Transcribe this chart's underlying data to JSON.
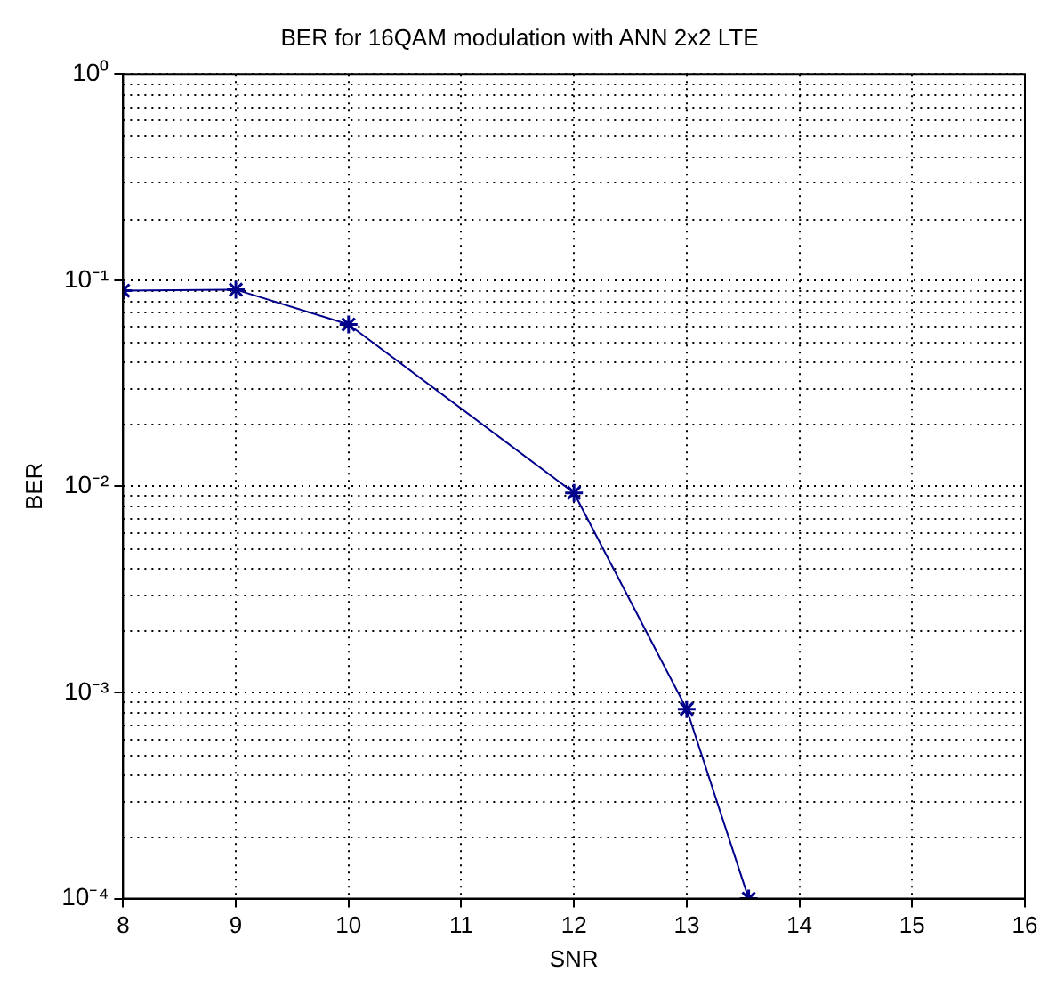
{
  "chart_data": {
    "type": "line",
    "title": "BER for 16QAM modulation with ANN 2x2 LTE",
    "xlabel": "SNR",
    "ylabel": "BER",
    "x": [
      8,
      9,
      10,
      12,
      13,
      13.55
    ],
    "series": [
      {
        "color": "#00008b",
        "values": [
          0.089,
          0.09,
          0.061,
          0.0093,
          0.00083,
          0.0001
        ]
      }
    ],
    "xlim": [
      8,
      16
    ],
    "xticks": [
      8,
      9,
      10,
      11,
      12,
      13,
      14,
      15,
      16
    ],
    "ylim": [
      0.0001,
      1
    ],
    "yticks": [
      {
        "value": 0.0001,
        "label": "10⁻⁴"
      },
      {
        "value": 0.001,
        "label": "10⁻³"
      },
      {
        "value": 0.01,
        "label": "10⁻²"
      },
      {
        "value": 0.1,
        "label": "10⁻¹"
      },
      {
        "value": 1,
        "label": "10⁰"
      }
    ],
    "log": "y",
    "grid": true,
    "marker": "cross",
    "line_style": "solid",
    "legend": false
  }
}
